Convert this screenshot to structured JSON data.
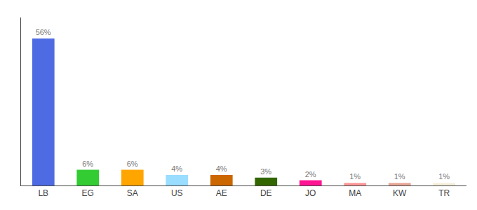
{
  "chart_data": {
    "type": "bar",
    "categories": [
      "LB",
      "EG",
      "SA",
      "US",
      "AE",
      "DE",
      "JO",
      "MA",
      "KW",
      "TR"
    ],
    "values": [
      56,
      6,
      6,
      4,
      4,
      3,
      2,
      1,
      1,
      1
    ],
    "value_labels": [
      "56%",
      "6%",
      "6%",
      "4%",
      "4%",
      "3%",
      "2%",
      "1%",
      "1%",
      "1%"
    ],
    "data_labels": true,
    "colors": [
      "#4F6BE3",
      "#33CC33",
      "#FFA500",
      "#99DDFF",
      "#CC6600",
      "#336600",
      "#FF1493",
      "#FF9999",
      "#E8A898",
      "#F5F0DC"
    ],
    "ylim": [
      0,
      64
    ],
    "grid": false,
    "tick_labels": "x"
  }
}
